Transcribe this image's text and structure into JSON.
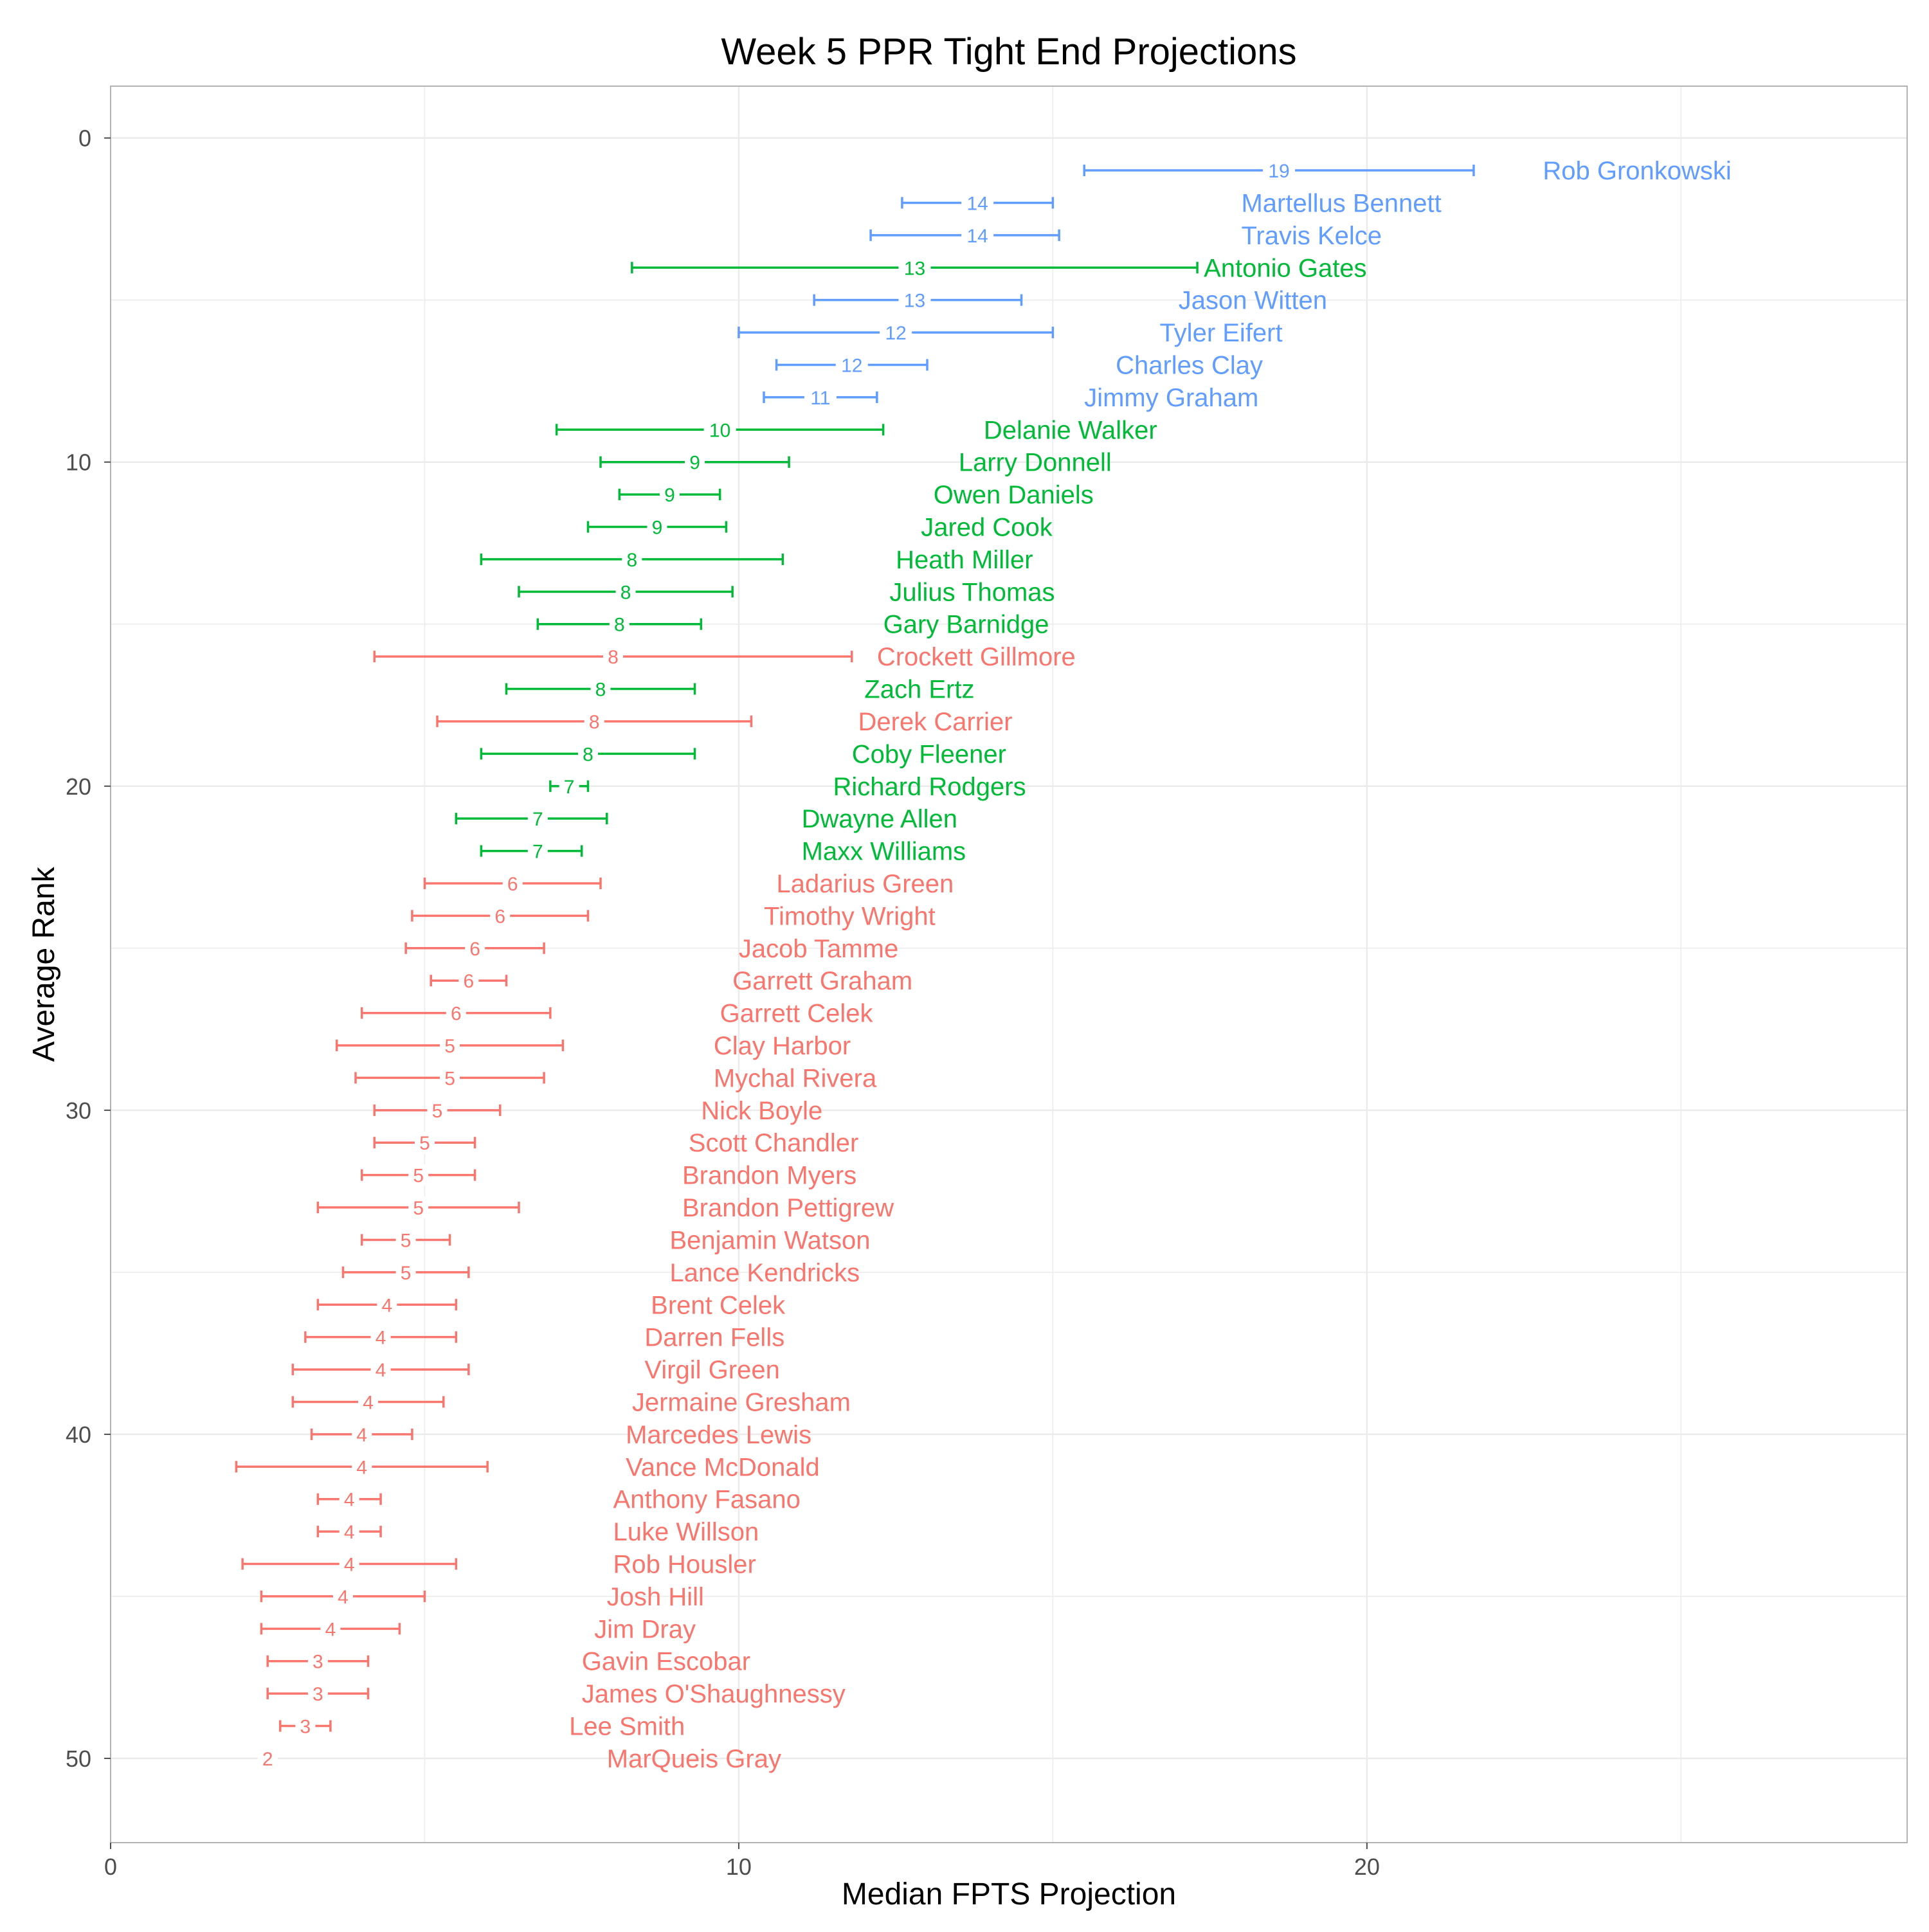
{
  "chart_data": {
    "type": "scatter",
    "title": "Week 5 PPR Tight End Projections",
    "xlabel": "Median FPTS Projection",
    "ylabel": "Average Rank",
    "xlim": [
      0,
      28.6
    ],
    "ylim": [
      52.6,
      -1.6
    ],
    "y_reversed": true,
    "grid": true,
    "legend": "none",
    "x_ticks": [
      0,
      10,
      20
    ],
    "y_ticks": [
      0,
      10,
      20,
      30,
      40,
      50
    ],
    "colors": {
      "tier1": "#619cff",
      "tier2": "#00ba38",
      "tier3": "#f8766d",
      "grid": "#ebebeb",
      "border": "#b3b3b3",
      "tick": "#4d4d4d"
    },
    "players": [
      {
        "name": "Rob Gronkowski",
        "rank": 1,
        "median": 18.6,
        "low": 15.5,
        "high": 21.7,
        "label": "19",
        "tier": "tier1"
      },
      {
        "name": "Martellus Bennett",
        "rank": 2,
        "median": 13.8,
        "low": 12.6,
        "high": 15.0,
        "label": "14",
        "tier": "tier1"
      },
      {
        "name": "Travis Kelce",
        "rank": 3,
        "median": 13.8,
        "low": 12.1,
        "high": 15.1,
        "label": "14",
        "tier": "tier1"
      },
      {
        "name": "Antonio Gates",
        "rank": 4,
        "median": 12.8,
        "low": 8.3,
        "high": 17.3,
        "label": "13",
        "tier": "tier2"
      },
      {
        "name": "Jason Witten",
        "rank": 5,
        "median": 12.8,
        "low": 11.2,
        "high": 14.5,
        "label": "13",
        "tier": "tier1"
      },
      {
        "name": "Tyler Eifert",
        "rank": 6,
        "median": 12.5,
        "low": 10.0,
        "high": 15.0,
        "label": "12",
        "tier": "tier1"
      },
      {
        "name": "Charles Clay",
        "rank": 7,
        "median": 11.8,
        "low": 10.6,
        "high": 13.0,
        "label": "12",
        "tier": "tier1"
      },
      {
        "name": "Jimmy Graham",
        "rank": 8,
        "median": 11.3,
        "low": 10.4,
        "high": 12.2,
        "label": "11",
        "tier": "tier1"
      },
      {
        "name": "Delanie Walker",
        "rank": 9,
        "median": 9.7,
        "low": 7.1,
        "high": 12.3,
        "label": "10",
        "tier": "tier2"
      },
      {
        "name": "Larry Donnell",
        "rank": 10,
        "median": 9.3,
        "low": 7.8,
        "high": 10.8,
        "label": "9",
        "tier": "tier2"
      },
      {
        "name": "Owen Daniels",
        "rank": 11,
        "median": 8.9,
        "low": 8.1,
        "high": 9.7,
        "label": "9",
        "tier": "tier2"
      },
      {
        "name": "Jared Cook",
        "rank": 12,
        "median": 8.7,
        "low": 7.6,
        "high": 9.8,
        "label": "9",
        "tier": "tier2"
      },
      {
        "name": "Heath Miller",
        "rank": 13,
        "median": 8.3,
        "low": 5.9,
        "high": 10.7,
        "label": "8",
        "tier": "tier2"
      },
      {
        "name": "Julius Thomas",
        "rank": 14,
        "median": 8.2,
        "low": 6.5,
        "high": 9.9,
        "label": "8",
        "tier": "tier2"
      },
      {
        "name": "Gary Barnidge",
        "rank": 15,
        "median": 8.1,
        "low": 6.8,
        "high": 9.4,
        "label": "8",
        "tier": "tier2"
      },
      {
        "name": "Crockett Gillmore",
        "rank": 16,
        "median": 8.0,
        "low": 4.2,
        "high": 11.8,
        "label": "8",
        "tier": "tier3"
      },
      {
        "name": "Zach Ertz",
        "rank": 17,
        "median": 7.8,
        "low": 6.3,
        "high": 9.3,
        "label": "8",
        "tier": "tier2"
      },
      {
        "name": "Derek Carrier",
        "rank": 18,
        "median": 7.7,
        "low": 5.2,
        "high": 10.2,
        "label": "8",
        "tier": "tier3"
      },
      {
        "name": "Coby Fleener",
        "rank": 19,
        "median": 7.6,
        "low": 5.9,
        "high": 9.3,
        "label": "8",
        "tier": "tier2"
      },
      {
        "name": "Richard Rodgers",
        "rank": 20,
        "median": 7.3,
        "low": 7.0,
        "high": 7.6,
        "label": "7",
        "tier": "tier2"
      },
      {
        "name": "Dwayne Allen",
        "rank": 21,
        "median": 6.8,
        "low": 5.5,
        "high": 7.9,
        "label": "7",
        "tier": "tier2"
      },
      {
        "name": "Maxx Williams",
        "rank": 22,
        "median": 6.8,
        "low": 5.9,
        "high": 7.5,
        "label": "7",
        "tier": "tier2"
      },
      {
        "name": "Ladarius Green",
        "rank": 23,
        "median": 6.4,
        "low": 5.0,
        "high": 7.8,
        "label": "6",
        "tier": "tier3"
      },
      {
        "name": "Timothy Wright",
        "rank": 24,
        "median": 6.2,
        "low": 4.8,
        "high": 7.6,
        "label": "6",
        "tier": "tier3"
      },
      {
        "name": "Jacob Tamme",
        "rank": 25,
        "median": 5.8,
        "low": 4.7,
        "high": 6.9,
        "label": "6",
        "tier": "tier3"
      },
      {
        "name": "Garrett Graham",
        "rank": 26,
        "median": 5.7,
        "low": 5.1,
        "high": 6.3,
        "label": "6",
        "tier": "tier3"
      },
      {
        "name": "Garrett Celek",
        "rank": 27,
        "median": 5.5,
        "low": 4.0,
        "high": 7.0,
        "label": "6",
        "tier": "tier3"
      },
      {
        "name": "Clay Harbor",
        "rank": 28,
        "median": 5.4,
        "low": 3.6,
        "high": 7.2,
        "label": "5",
        "tier": "tier3"
      },
      {
        "name": "Mychal Rivera",
        "rank": 29,
        "median": 5.4,
        "low": 3.9,
        "high": 6.9,
        "label": "5",
        "tier": "tier3"
      },
      {
        "name": "Nick Boyle",
        "rank": 30,
        "median": 5.2,
        "low": 4.2,
        "high": 6.2,
        "label": "5",
        "tier": "tier3"
      },
      {
        "name": "Scott Chandler",
        "rank": 31,
        "median": 5.0,
        "low": 4.2,
        "high": 5.8,
        "label": "5",
        "tier": "tier3"
      },
      {
        "name": "Brandon Myers",
        "rank": 32,
        "median": 4.9,
        "low": 4.0,
        "high": 5.8,
        "label": "5",
        "tier": "tier3"
      },
      {
        "name": "Brandon Pettigrew",
        "rank": 33,
        "median": 4.9,
        "low": 3.3,
        "high": 6.5,
        "label": "5",
        "tier": "tier3"
      },
      {
        "name": "Benjamin Watson",
        "rank": 34,
        "median": 4.7,
        "low": 4.0,
        "high": 5.4,
        "label": "5",
        "tier": "tier3"
      },
      {
        "name": "Lance Kendricks",
        "rank": 35,
        "median": 4.7,
        "low": 3.7,
        "high": 5.7,
        "label": "5",
        "tier": "tier3"
      },
      {
        "name": "Brent Celek",
        "rank": 36,
        "median": 4.4,
        "low": 3.3,
        "high": 5.5,
        "label": "4",
        "tier": "tier3"
      },
      {
        "name": "Darren Fells",
        "rank": 37,
        "median": 4.3,
        "low": 3.1,
        "high": 5.5,
        "label": "4",
        "tier": "tier3"
      },
      {
        "name": "Virgil Green",
        "rank": 38,
        "median": 4.3,
        "low": 2.9,
        "high": 5.7,
        "label": "4",
        "tier": "tier3"
      },
      {
        "name": "Jermaine Gresham",
        "rank": 39,
        "median": 4.1,
        "low": 2.9,
        "high": 5.3,
        "label": "4",
        "tier": "tier3"
      },
      {
        "name": "Marcedes Lewis",
        "rank": 40,
        "median": 4.0,
        "low": 3.2,
        "high": 4.8,
        "label": "4",
        "tier": "tier3"
      },
      {
        "name": "Vance McDonald",
        "rank": 41,
        "median": 4.0,
        "low": 2.0,
        "high": 6.0,
        "label": "4",
        "tier": "tier3"
      },
      {
        "name": "Anthony Fasano",
        "rank": 42,
        "median": 3.8,
        "low": 3.3,
        "high": 4.3,
        "label": "4",
        "tier": "tier3"
      },
      {
        "name": "Luke Willson",
        "rank": 43,
        "median": 3.8,
        "low": 3.3,
        "high": 4.3,
        "label": "4",
        "tier": "tier3"
      },
      {
        "name": "Rob Housler",
        "rank": 44,
        "median": 3.8,
        "low": 2.1,
        "high": 5.5,
        "label": "4",
        "tier": "tier3"
      },
      {
        "name": "Josh Hill",
        "rank": 45,
        "median": 3.7,
        "low": 2.4,
        "high": 5.0,
        "label": "4",
        "tier": "tier3"
      },
      {
        "name": "Jim Dray",
        "rank": 46,
        "median": 3.5,
        "low": 2.4,
        "high": 4.6,
        "label": "4",
        "tier": "tier3"
      },
      {
        "name": "Gavin Escobar",
        "rank": 47,
        "median": 3.3,
        "low": 2.5,
        "high": 4.1,
        "label": "3",
        "tier": "tier3"
      },
      {
        "name": "James O'Shaughnessy",
        "rank": 48,
        "median": 3.3,
        "low": 2.5,
        "high": 4.1,
        "label": "3",
        "tier": "tier3"
      },
      {
        "name": "Lee Smith",
        "rank": 49,
        "median": 3.1,
        "low": 2.7,
        "high": 3.5,
        "label": "3",
        "tier": "tier3"
      },
      {
        "name": "MarQueis Gray",
        "rank": 50,
        "median": 2.5,
        "low": 2.5,
        "high": 2.5,
        "label": "2",
        "tier": "tier3"
      }
    ]
  }
}
